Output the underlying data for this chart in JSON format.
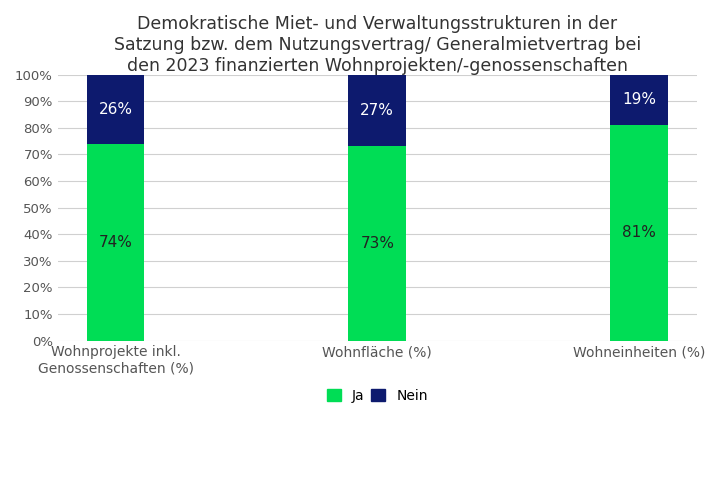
{
  "title": "Demokratische Miet- und Verwaltungsstrukturen in der\nSatzung bzw. dem Nutzungsvertrag/ Generalmietvertrag bei\nden 2023 finanzierten Wohnprojekten/-genossenschaften",
  "categories": [
    "Wohnprojekte inkl.\nGenossenschaften (%)",
    "Wohnfläche (%)",
    "Wohneinheiten (%)"
  ],
  "ja_values": [
    74,
    73,
    81
  ],
  "nein_values": [
    26,
    27,
    19
  ],
  "ja_color": "#00dd55",
  "nein_color": "#0d1a6e",
  "ja_label": "Ja",
  "nein_label": "Nein",
  "bar_width": 0.22,
  "ylim": [
    0,
    100
  ],
  "yticks": [
    0,
    10,
    20,
    30,
    40,
    50,
    60,
    70,
    80,
    90,
    100
  ],
  "ytick_labels": [
    "0%",
    "10%",
    "20%",
    "30%",
    "40%",
    "50%",
    "60%",
    "70%",
    "80%",
    "90%",
    "100%"
  ],
  "title_fontsize": 12.5,
  "label_fontsize": 10,
  "tick_fontsize": 9.5,
  "legend_fontsize": 10,
  "background_color": "#ffffff",
  "grid_color": "#d0d0d0",
  "text_color_dark": "#222222",
  "text_color_light": "#ffffff",
  "text_fontsize_ja": 11,
  "text_fontsize_nein": 11
}
